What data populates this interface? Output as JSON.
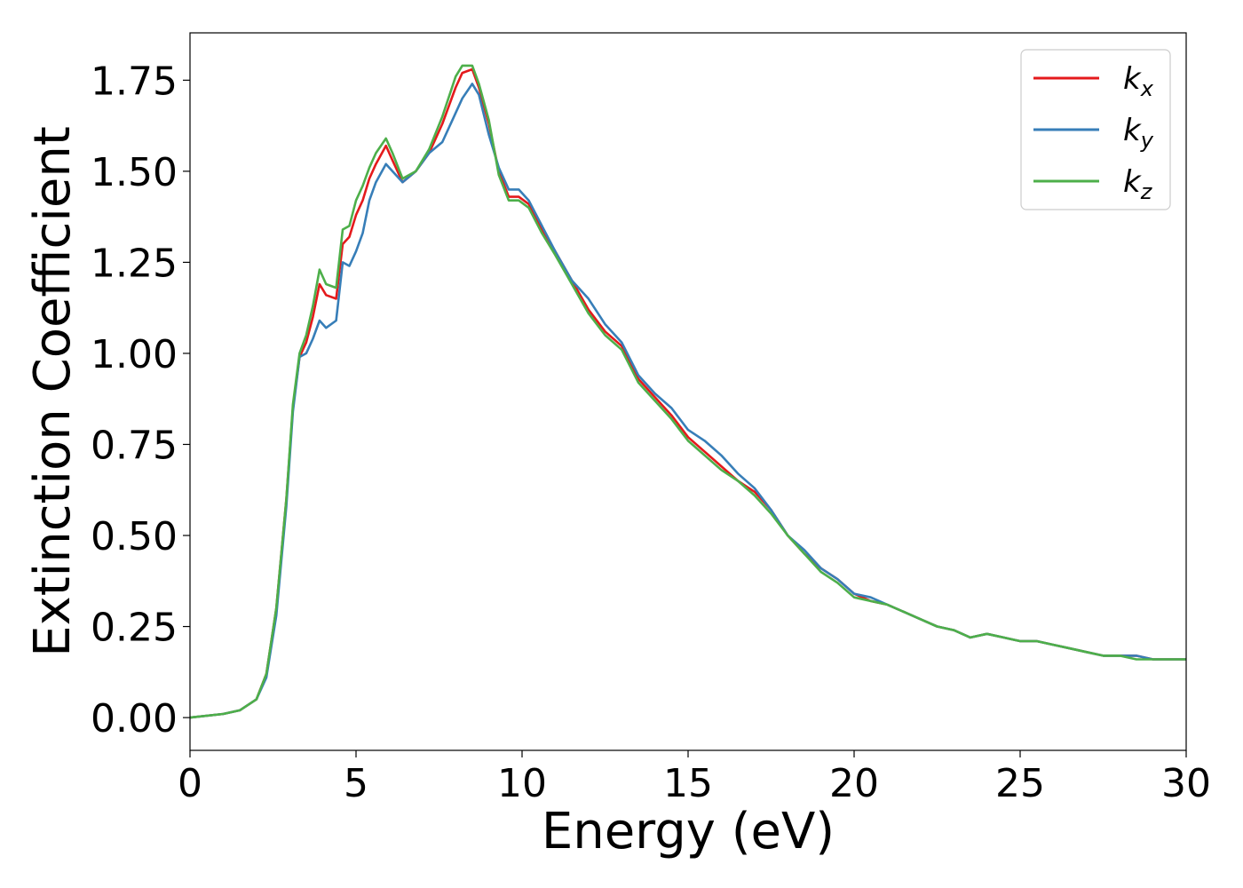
{
  "chart_data": {
    "type": "line",
    "title": "",
    "xlabel": "Energy (eV)",
    "ylabel": "Extinction Coefficient",
    "xlim": [
      0,
      30
    ],
    "ylim": [
      -0.09,
      1.88
    ],
    "xticks": [
      0,
      5,
      10,
      15,
      20,
      25,
      30
    ],
    "xtick_labels": [
      "0",
      "5",
      "10",
      "15",
      "20",
      "25",
      "30"
    ],
    "yticks": [
      0.0,
      0.25,
      0.5,
      0.75,
      1.0,
      1.25,
      1.5,
      1.75
    ],
    "ytick_labels": [
      "0.00",
      "0.25",
      "0.50",
      "0.75",
      "1.00",
      "1.25",
      "1.50",
      "1.75"
    ],
    "grid": false,
    "legend_position": "top-right",
    "series": [
      {
        "name": "k_x",
        "label_base": "k",
        "label_sub": "x",
        "color": "#e41a1c",
        "points": [
          [
            0,
            0
          ],
          [
            1,
            0.01
          ],
          [
            1.5,
            0.02
          ],
          [
            2.0,
            0.05
          ],
          [
            2.3,
            0.12
          ],
          [
            2.6,
            0.3
          ],
          [
            2.9,
            0.6
          ],
          [
            3.1,
            0.85
          ],
          [
            3.3,
            0.99
          ],
          [
            3.5,
            1.03
          ],
          [
            3.7,
            1.1
          ],
          [
            3.9,
            1.19
          ],
          [
            4.1,
            1.16
          ],
          [
            4.4,
            1.15
          ],
          [
            4.6,
            1.3
          ],
          [
            4.8,
            1.32
          ],
          [
            5.0,
            1.38
          ],
          [
            5.2,
            1.42
          ],
          [
            5.4,
            1.48
          ],
          [
            5.6,
            1.52
          ],
          [
            5.9,
            1.57
          ],
          [
            6.1,
            1.53
          ],
          [
            6.4,
            1.47
          ],
          [
            6.8,
            1.5
          ],
          [
            7.2,
            1.55
          ],
          [
            7.6,
            1.63
          ],
          [
            8.0,
            1.73
          ],
          [
            8.2,
            1.77
          ],
          [
            8.5,
            1.78
          ],
          [
            8.7,
            1.73
          ],
          [
            9.0,
            1.63
          ],
          [
            9.3,
            1.5
          ],
          [
            9.6,
            1.43
          ],
          [
            9.9,
            1.43
          ],
          [
            10.2,
            1.41
          ],
          [
            10.6,
            1.34
          ],
          [
            11.0,
            1.28
          ],
          [
            11.5,
            1.2
          ],
          [
            12.0,
            1.12
          ],
          [
            12.5,
            1.06
          ],
          [
            13.0,
            1.02
          ],
          [
            13.5,
            0.93
          ],
          [
            14.0,
            0.88
          ],
          [
            14.5,
            0.83
          ],
          [
            15.0,
            0.77
          ],
          [
            15.5,
            0.73
          ],
          [
            16.0,
            0.69
          ],
          [
            16.5,
            0.65
          ],
          [
            17.0,
            0.62
          ],
          [
            17.5,
            0.57
          ],
          [
            18.0,
            0.5
          ],
          [
            18.5,
            0.45
          ],
          [
            19.0,
            0.41
          ],
          [
            19.5,
            0.38
          ],
          [
            20.0,
            0.34
          ],
          [
            20.5,
            0.32
          ],
          [
            21.0,
            0.31
          ],
          [
            21.5,
            0.29
          ],
          [
            22.0,
            0.27
          ],
          [
            22.5,
            0.25
          ],
          [
            23.0,
            0.24
          ],
          [
            23.5,
            0.22
          ],
          [
            24.0,
            0.23
          ],
          [
            24.5,
            0.22
          ],
          [
            25.0,
            0.21
          ],
          [
            25.5,
            0.21
          ],
          [
            26.0,
            0.2
          ],
          [
            26.5,
            0.19
          ],
          [
            27.0,
            0.18
          ],
          [
            27.5,
            0.17
          ],
          [
            28.0,
            0.17
          ],
          [
            28.5,
            0.17
          ],
          [
            29.0,
            0.16
          ],
          [
            29.5,
            0.16
          ],
          [
            30.0,
            0.16
          ]
        ]
      },
      {
        "name": "k_y",
        "label_base": "k",
        "label_sub": "y",
        "color": "#377eb8",
        "points": [
          [
            0,
            0
          ],
          [
            1,
            0.01
          ],
          [
            1.5,
            0.02
          ],
          [
            2.0,
            0.05
          ],
          [
            2.3,
            0.11
          ],
          [
            2.6,
            0.28
          ],
          [
            2.9,
            0.58
          ],
          [
            3.1,
            0.84
          ],
          [
            3.3,
            0.99
          ],
          [
            3.5,
            1.0
          ],
          [
            3.7,
            1.04
          ],
          [
            3.9,
            1.09
          ],
          [
            4.1,
            1.07
          ],
          [
            4.4,
            1.09
          ],
          [
            4.6,
            1.25
          ],
          [
            4.8,
            1.24
          ],
          [
            5.0,
            1.28
          ],
          [
            5.2,
            1.33
          ],
          [
            5.4,
            1.42
          ],
          [
            5.6,
            1.47
          ],
          [
            5.9,
            1.52
          ],
          [
            6.1,
            1.5
          ],
          [
            6.4,
            1.47
          ],
          [
            6.8,
            1.5
          ],
          [
            7.2,
            1.55
          ],
          [
            7.6,
            1.58
          ],
          [
            8.0,
            1.66
          ],
          [
            8.2,
            1.7
          ],
          [
            8.5,
            1.74
          ],
          [
            8.7,
            1.71
          ],
          [
            9.0,
            1.6
          ],
          [
            9.3,
            1.51
          ],
          [
            9.6,
            1.45
          ],
          [
            9.9,
            1.45
          ],
          [
            10.2,
            1.42
          ],
          [
            10.6,
            1.35
          ],
          [
            11.0,
            1.28
          ],
          [
            11.5,
            1.2
          ],
          [
            12.0,
            1.15
          ],
          [
            12.5,
            1.08
          ],
          [
            13.0,
            1.03
          ],
          [
            13.5,
            0.94
          ],
          [
            14.0,
            0.89
          ],
          [
            14.5,
            0.85
          ],
          [
            15.0,
            0.79
          ],
          [
            15.5,
            0.76
          ],
          [
            16.0,
            0.72
          ],
          [
            16.5,
            0.67
          ],
          [
            17.0,
            0.63
          ],
          [
            17.5,
            0.57
          ],
          [
            18.0,
            0.5
          ],
          [
            18.5,
            0.46
          ],
          [
            19.0,
            0.41
          ],
          [
            19.5,
            0.38
          ],
          [
            20.0,
            0.34
          ],
          [
            20.5,
            0.33
          ],
          [
            21.0,
            0.31
          ],
          [
            21.5,
            0.29
          ],
          [
            22.0,
            0.27
          ],
          [
            22.5,
            0.25
          ],
          [
            23.0,
            0.24
          ],
          [
            23.5,
            0.22
          ],
          [
            24.0,
            0.23
          ],
          [
            24.5,
            0.22
          ],
          [
            25.0,
            0.21
          ],
          [
            25.5,
            0.21
          ],
          [
            26.0,
            0.2
          ],
          [
            26.5,
            0.19
          ],
          [
            27.0,
            0.18
          ],
          [
            27.5,
            0.17
          ],
          [
            28.0,
            0.17
          ],
          [
            28.5,
            0.17
          ],
          [
            29.0,
            0.16
          ],
          [
            29.5,
            0.16
          ],
          [
            30.0,
            0.16
          ]
        ]
      },
      {
        "name": "k_z",
        "label_base": "k",
        "label_sub": "z",
        "color": "#4daf4a",
        "points": [
          [
            0,
            0
          ],
          [
            1,
            0.01
          ],
          [
            1.5,
            0.02
          ],
          [
            2.0,
            0.05
          ],
          [
            2.3,
            0.12
          ],
          [
            2.6,
            0.3
          ],
          [
            2.9,
            0.6
          ],
          [
            3.1,
            0.86
          ],
          [
            3.3,
            1.0
          ],
          [
            3.5,
            1.05
          ],
          [
            3.7,
            1.13
          ],
          [
            3.9,
            1.23
          ],
          [
            4.1,
            1.19
          ],
          [
            4.4,
            1.18
          ],
          [
            4.6,
            1.34
          ],
          [
            4.8,
            1.35
          ],
          [
            5.0,
            1.42
          ],
          [
            5.2,
            1.46
          ],
          [
            5.4,
            1.51
          ],
          [
            5.6,
            1.55
          ],
          [
            5.9,
            1.59
          ],
          [
            6.1,
            1.55
          ],
          [
            6.4,
            1.48
          ],
          [
            6.8,
            1.5
          ],
          [
            7.2,
            1.56
          ],
          [
            7.6,
            1.65
          ],
          [
            8.0,
            1.76
          ],
          [
            8.2,
            1.79
          ],
          [
            8.5,
            1.79
          ],
          [
            8.7,
            1.74
          ],
          [
            9.0,
            1.64
          ],
          [
            9.3,
            1.49
          ],
          [
            9.6,
            1.42
          ],
          [
            9.9,
            1.42
          ],
          [
            10.2,
            1.4
          ],
          [
            10.6,
            1.33
          ],
          [
            11.0,
            1.27
          ],
          [
            11.5,
            1.19
          ],
          [
            12.0,
            1.11
          ],
          [
            12.5,
            1.05
          ],
          [
            13.0,
            1.01
          ],
          [
            13.5,
            0.92
          ],
          [
            14.0,
            0.87
          ],
          [
            14.5,
            0.82
          ],
          [
            15.0,
            0.76
          ],
          [
            15.5,
            0.72
          ],
          [
            16.0,
            0.68
          ],
          [
            16.5,
            0.65
          ],
          [
            17.0,
            0.61
          ],
          [
            17.5,
            0.56
          ],
          [
            18.0,
            0.5
          ],
          [
            18.5,
            0.45
          ],
          [
            19.0,
            0.4
          ],
          [
            19.5,
            0.37
          ],
          [
            20.0,
            0.33
          ],
          [
            20.5,
            0.32
          ],
          [
            21.0,
            0.31
          ],
          [
            21.5,
            0.29
          ],
          [
            22.0,
            0.27
          ],
          [
            22.5,
            0.25
          ],
          [
            23.0,
            0.24
          ],
          [
            23.5,
            0.22
          ],
          [
            24.0,
            0.23
          ],
          [
            24.5,
            0.22
          ],
          [
            25.0,
            0.21
          ],
          [
            25.5,
            0.21
          ],
          [
            26.0,
            0.2
          ],
          [
            26.5,
            0.19
          ],
          [
            27.0,
            0.18
          ],
          [
            27.5,
            0.17
          ],
          [
            28.0,
            0.17
          ],
          [
            28.5,
            0.16
          ],
          [
            29.0,
            0.16
          ],
          [
            29.5,
            0.16
          ],
          [
            30.0,
            0.16
          ]
        ]
      }
    ]
  }
}
